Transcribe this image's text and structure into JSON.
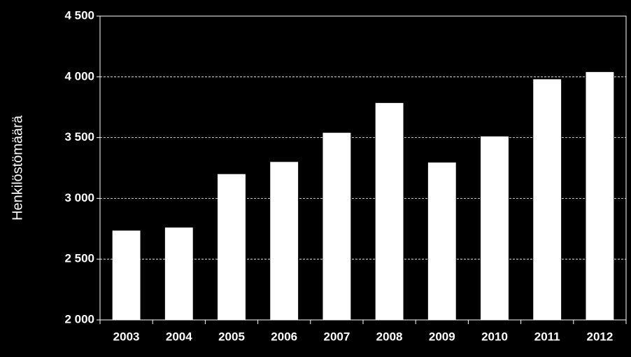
{
  "chart_data": {
    "type": "bar",
    "y_label": "Henkilöstömäärä",
    "categories": [
      "2003",
      "2004",
      "2005",
      "2006",
      "2007",
      "2008",
      "2009",
      "2010",
      "2011",
      "2012"
    ],
    "values": [
      2735,
      2760,
      3200,
      3300,
      3540,
      3785,
      3295,
      3510,
      3980,
      4040
    ],
    "color": "#ffffff",
    "ylim": [
      2000,
      4500
    ],
    "yticks": [
      {
        "value": 2000,
        "label": "2 000"
      },
      {
        "value": 2500,
        "label": "2 500"
      },
      {
        "value": 3000,
        "label": "3 000"
      },
      {
        "value": 3500,
        "label": "3 500"
      },
      {
        "value": 4000,
        "label": "4 000"
      },
      {
        "value": 4500,
        "label": "4 500"
      }
    ],
    "grid": true
  }
}
